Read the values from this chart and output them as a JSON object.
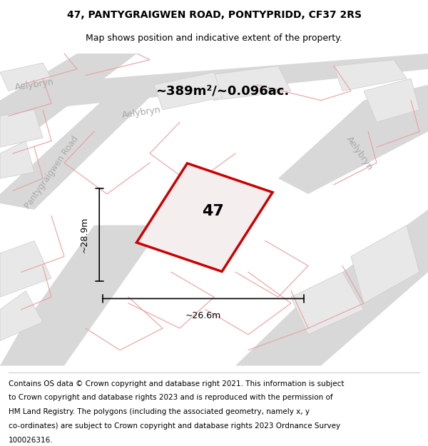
{
  "title_line1": "47, PANTYGRAIGWEN ROAD, PONTYPRIDD, CF37 2RS",
  "title_line2": "Map shows position and indicative extent of the property.",
  "area_text": "~389m²/~0.096ac.",
  "number_label": "47",
  "dim_vertical": "~28.9m",
  "dim_horizontal": "~26.6m",
  "footer_lines": [
    "Contains OS data © Crown copyright and database right 2021. This information is subject",
    "to Crown copyright and database rights 2023 and is reproduced with the permission of",
    "HM Land Registry. The polygons (including the associated geometry, namely x, y",
    "co-ordinates) are subject to Crown copyright and database rights 2023 Ordnance Survey",
    "100026316."
  ],
  "bg_color": "#f0efed",
  "road_color": "#d8d8d8",
  "plot_outline_color": "#cc0000",
  "plot_fill_color": "#f5eeee",
  "building_fill": "#dcdcdc",
  "street_label_color": "#aaaaaa",
  "red_line_color": "#e8a0a0",
  "title_fontsize": 10,
  "subtitle_fontsize": 9,
  "footer_fontsize": 7.5,
  "label_fontsize": 16,
  "area_fontsize": 13,
  "dim_fontsize": 9,
  "street_fontsize": 9
}
